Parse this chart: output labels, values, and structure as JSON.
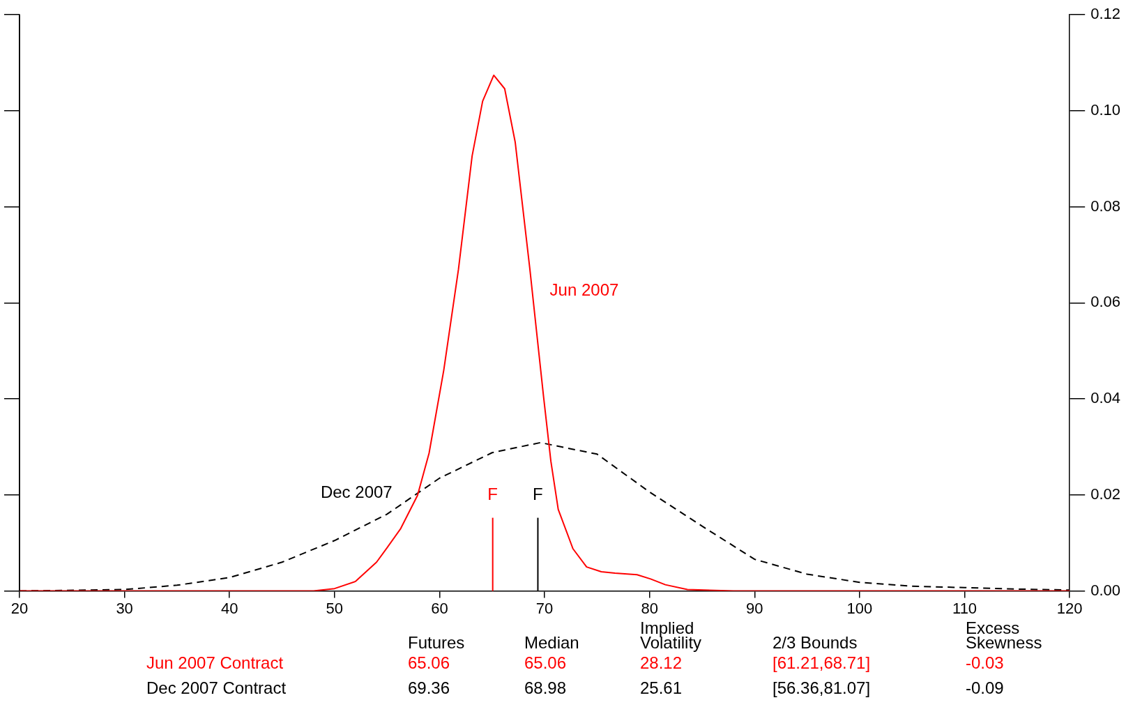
{
  "chart_data": {
    "type": "line",
    "legend": false,
    "grid": false,
    "marker": "none",
    "xlim": [
      20,
      120
    ],
    "xticks": [
      20,
      30,
      40,
      50,
      60,
      70,
      80,
      90,
      100,
      110,
      120
    ],
    "ylim": [
      0,
      0.12
    ],
    "yticks": [
      {
        "value": 0,
        "label": "0.00"
      },
      {
        "value": 0.02,
        "label": "0.02"
      },
      {
        "value": 0.04,
        "label": "0.04"
      },
      {
        "value": 0.06,
        "label": "0.06"
      },
      {
        "value": 0.08,
        "label": "0.08"
      },
      {
        "value": 0.1,
        "label": "0.10"
      },
      {
        "value": 0.12,
        "label": "0.12"
      }
    ],
    "series": [
      {
        "name": "Jun 2007",
        "color": "#ff0000",
        "line_style": "solid",
        "x": [
          20,
          48,
          50,
          52,
          54,
          55,
          56.3,
          57.9,
          59,
          60.4,
          61.8,
          63.1,
          64.1,
          65.16,
          66.2,
          67.2,
          68.6,
          69.9,
          70.6,
          71.3,
          72.7,
          74,
          75.4,
          76.7,
          78.8,
          80.1,
          81.5,
          83.6,
          88,
          120
        ],
        "values": [
          0,
          0,
          0.0005,
          0.002,
          0.006,
          0.009,
          0.013,
          0.0199,
          0.0287,
          0.046,
          0.067,
          0.0906,
          0.102,
          0.1074,
          0.1046,
          0.0935,
          0.067,
          0.0405,
          0.027,
          0.017,
          0.0088,
          0.005,
          0.004,
          0.0037,
          0.0034,
          0.0025,
          0.0013,
          0.0003,
          0,
          0
        ]
      },
      {
        "name": "Dec 2007",
        "color": "#000000",
        "line_style": "dashed",
        "x": [
          20,
          30,
          35,
          40,
          45,
          50,
          55,
          58,
          60,
          65,
          69.6,
          75,
          80,
          85,
          90,
          95,
          100,
          105,
          110,
          115,
          120
        ],
        "values": [
          0,
          0.0003,
          0.0012,
          0.0028,
          0.006,
          0.0105,
          0.016,
          0.0205,
          0.0235,
          0.0288,
          0.0309,
          0.0285,
          0.0206,
          0.0135,
          0.0066,
          0.0035,
          0.0018,
          0.001,
          0.0007,
          0.0004,
          0.0002
        ]
      }
    ],
    "ref_lines": [
      {
        "axis": "x",
        "value": 65.06,
        "label": "F",
        "color": "#ff0000"
      },
      {
        "axis": "x",
        "value": 69.36,
        "label": "F",
        "color": "#000000"
      }
    ],
    "annotations": [
      "Futures",
      "Median",
      "Implied\nVolatility",
      "2/3 Bounds",
      "Excess\nSkewness",
      "Jun 2007 Contract",
      "65.06",
      "65.06",
      "28.12",
      "[61.21,68.71]",
      "-0.03",
      "Dec 2007 Contract",
      "69.36",
      "68.98",
      "25.61",
      "[56.36,81.07]",
      "-0.09"
    ]
  }
}
